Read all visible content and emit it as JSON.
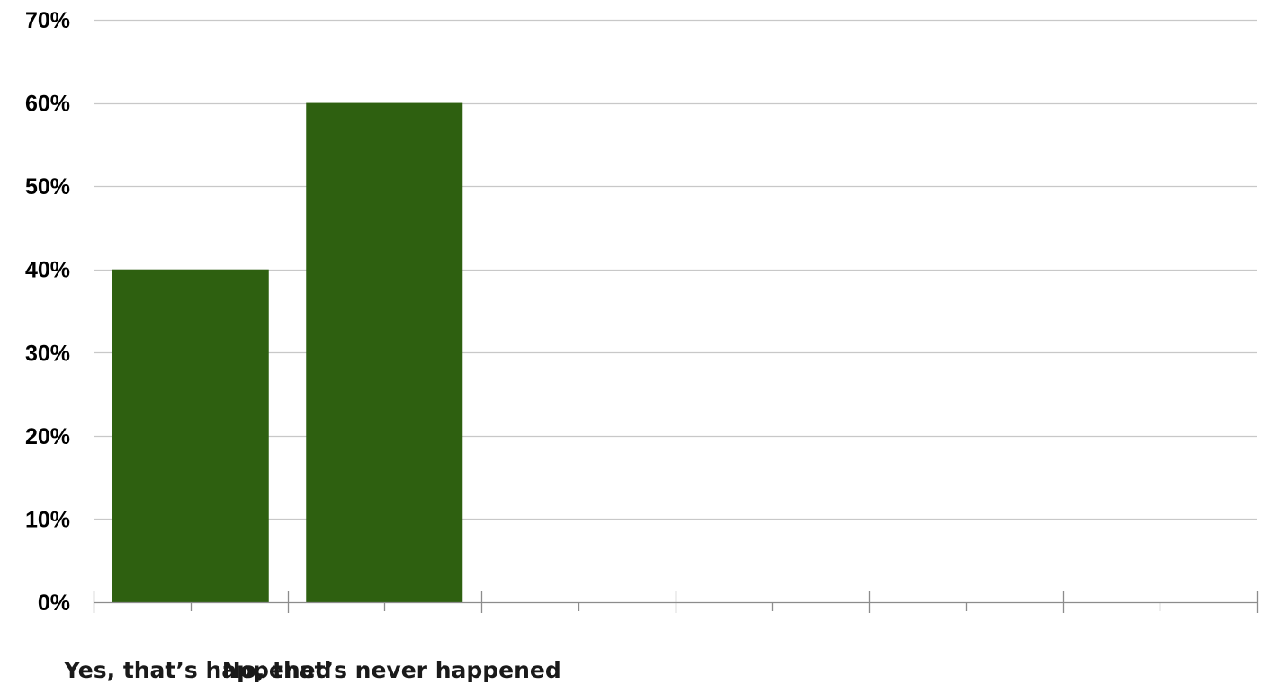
{
  "chart_data": {
    "type": "bar",
    "categories": [
      "Yes, that’s happened",
      "No, that’s never happened",
      "",
      "",
      "",
      ""
    ],
    "values": [
      40,
      60,
      null,
      null,
      null,
      null
    ],
    "ylim": [
      0,
      70
    ],
    "y_ticks": [
      0,
      10,
      20,
      30,
      40,
      50,
      60,
      70
    ],
    "y_tick_labels": [
      "0%",
      "10%",
      "20%",
      "30%",
      "40%",
      "50%",
      "60%",
      "70%"
    ],
    "title": "",
    "xlabel": "",
    "ylabel": "",
    "grid": true,
    "legend": "none",
    "bar_color": "#2e6010",
    "grid_color": "#c8c8c8",
    "axis_color": "#8c8c8c"
  }
}
